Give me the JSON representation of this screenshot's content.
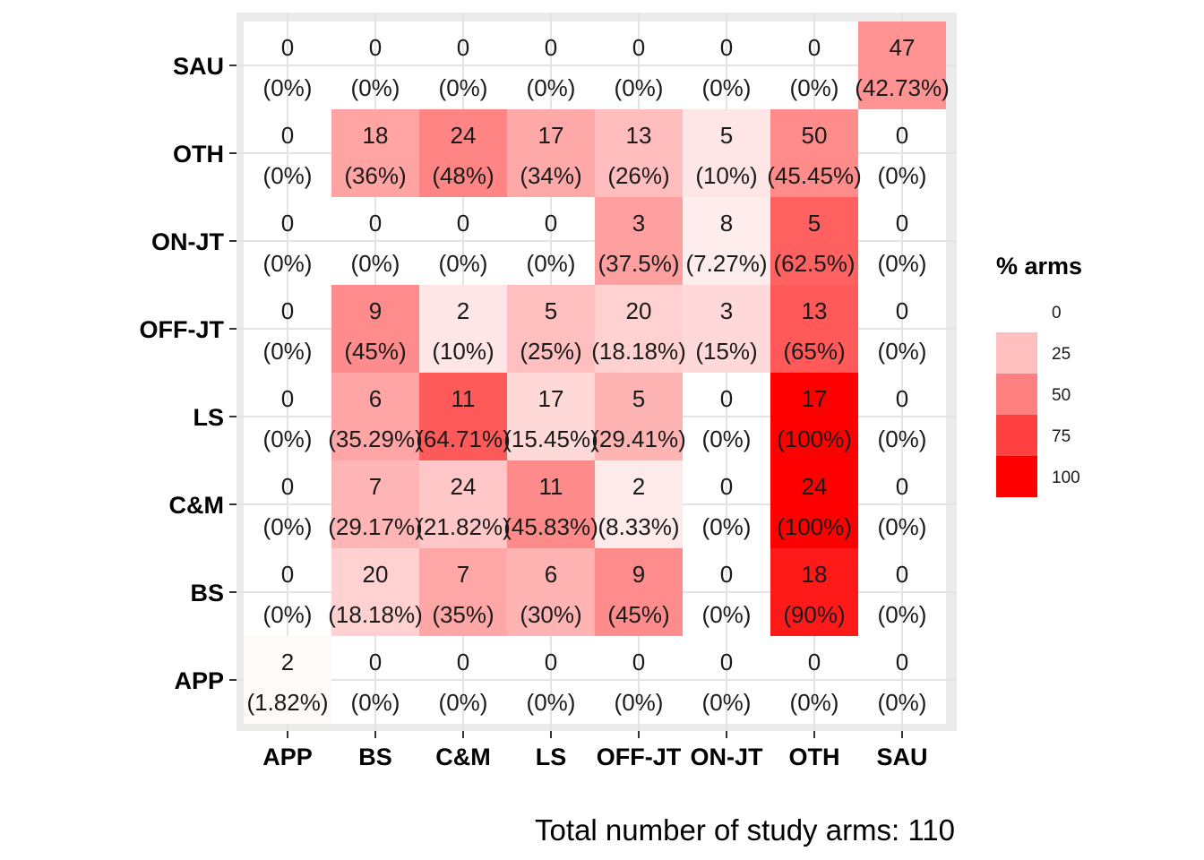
{
  "chart_data": {
    "type": "heatmap",
    "x_categories": [
      "APP",
      "BS",
      "C&M",
      "LS",
      "OFF-JT",
      "ON-JT",
      "OTH",
      "SAU"
    ],
    "y_categories": [
      "SAU",
      "OTH",
      "ON-JT",
      "OFF-JT",
      "LS",
      "C&M",
      "BS",
      "APP"
    ],
    "cells": [
      [
        {
          "count": "0",
          "pct": "(0%)",
          "value": 0
        },
        {
          "count": "0",
          "pct": "(0%)",
          "value": 0
        },
        {
          "count": "0",
          "pct": "(0%)",
          "value": 0
        },
        {
          "count": "0",
          "pct": "(0%)",
          "value": 0
        },
        {
          "count": "0",
          "pct": "(0%)",
          "value": 0
        },
        {
          "count": "0",
          "pct": "(0%)",
          "value": 0
        },
        {
          "count": "0",
          "pct": "(0%)",
          "value": 0
        },
        {
          "count": "47",
          "pct": "(42.73%)",
          "value": 42.73
        }
      ],
      [
        {
          "count": "0",
          "pct": "(0%)",
          "value": 0
        },
        {
          "count": "18",
          "pct": "(36%)",
          "value": 36
        },
        {
          "count": "24",
          "pct": "(48%)",
          "value": 48
        },
        {
          "count": "17",
          "pct": "(34%)",
          "value": 34
        },
        {
          "count": "13",
          "pct": "(26%)",
          "value": 26
        },
        {
          "count": "5",
          "pct": "(10%)",
          "value": 10
        },
        {
          "count": "50",
          "pct": "(45.45%)",
          "value": 45.45
        },
        {
          "count": "0",
          "pct": "(0%)",
          "value": 0
        }
      ],
      [
        {
          "count": "0",
          "pct": "(0%)",
          "value": 0
        },
        {
          "count": "0",
          "pct": "(0%)",
          "value": 0
        },
        {
          "count": "0",
          "pct": "(0%)",
          "value": 0
        },
        {
          "count": "0",
          "pct": "(0%)",
          "value": 0
        },
        {
          "count": "3",
          "pct": "(37.5%)",
          "value": 37.5
        },
        {
          "count": "8",
          "pct": "(7.27%)",
          "value": 7.27
        },
        {
          "count": "5",
          "pct": "(62.5%)",
          "value": 62.5
        },
        {
          "count": "0",
          "pct": "(0%)",
          "value": 0
        }
      ],
      [
        {
          "count": "0",
          "pct": "(0%)",
          "value": 0
        },
        {
          "count": "9",
          "pct": "(45%)",
          "value": 45
        },
        {
          "count": "2",
          "pct": "(10%)",
          "value": 10
        },
        {
          "count": "5",
          "pct": "(25%)",
          "value": 25
        },
        {
          "count": "20",
          "pct": "(18.18%)",
          "value": 18.18
        },
        {
          "count": "3",
          "pct": "(15%)",
          "value": 15
        },
        {
          "count": "13",
          "pct": "(65%)",
          "value": 65
        },
        {
          "count": "0",
          "pct": "(0%)",
          "value": 0
        }
      ],
      [
        {
          "count": "0",
          "pct": "(0%)",
          "value": 0
        },
        {
          "count": "6",
          "pct": "(35.29%)",
          "value": 35.29
        },
        {
          "count": "11",
          "pct": "(64.71%)",
          "value": 64.71
        },
        {
          "count": "17",
          "pct": "(15.45%)",
          "value": 15.45
        },
        {
          "count": "5",
          "pct": "(29.41%)",
          "value": 29.41
        },
        {
          "count": "0",
          "pct": "(0%)",
          "value": 0
        },
        {
          "count": "17",
          "pct": "(100%)",
          "value": 100
        },
        {
          "count": "0",
          "pct": "(0%)",
          "value": 0
        }
      ],
      [
        {
          "count": "0",
          "pct": "(0%)",
          "value": 0
        },
        {
          "count": "7",
          "pct": "(29.17%)",
          "value": 29.17
        },
        {
          "count": "24",
          "pct": "(21.82%)",
          "value": 21.82
        },
        {
          "count": "11",
          "pct": "(45.83%)",
          "value": 45.83
        },
        {
          "count": "2",
          "pct": "(8.33%)",
          "value": 8.33
        },
        {
          "count": "0",
          "pct": "(0%)",
          "value": 0
        },
        {
          "count": "24",
          "pct": "(100%)",
          "value": 100
        },
        {
          "count": "0",
          "pct": "(0%)",
          "value": 0
        }
      ],
      [
        {
          "count": "0",
          "pct": "(0%)",
          "value": 0
        },
        {
          "count": "20",
          "pct": "(18.18%)",
          "value": 18.18
        },
        {
          "count": "7",
          "pct": "(35%)",
          "value": 35
        },
        {
          "count": "6",
          "pct": "(30%)",
          "value": 30
        },
        {
          "count": "9",
          "pct": "(45%)",
          "value": 45
        },
        {
          "count": "0",
          "pct": "(0%)",
          "value": 0
        },
        {
          "count": "18",
          "pct": "(90%)",
          "value": 90
        },
        {
          "count": "0",
          "pct": "(0%)",
          "value": 0
        }
      ],
      [
        {
          "count": "2",
          "pct": "(1.82%)",
          "value": 1.82
        },
        {
          "count": "0",
          "pct": "(0%)",
          "value": 0
        },
        {
          "count": "0",
          "pct": "(0%)",
          "value": 0
        },
        {
          "count": "0",
          "pct": "(0%)",
          "value": 0
        },
        {
          "count": "0",
          "pct": "(0%)",
          "value": 0
        },
        {
          "count": "0",
          "pct": "(0%)",
          "value": 0
        },
        {
          "count": "0",
          "pct": "(0%)",
          "value": 0
        },
        {
          "count": "0",
          "pct": "(0%)",
          "value": 0
        }
      ]
    ],
    "color_scale": {
      "low": "#ffffff",
      "high": "#ff0000",
      "min": 0,
      "max": 100
    },
    "legend": {
      "title": "% arms",
      "breaks": [
        "0",
        "25",
        "50",
        "75",
        "100"
      ],
      "placement": "right"
    },
    "caption": "Total number of study arms: 110",
    "title": "",
    "xlabel": "",
    "ylabel": "",
    "grid": true,
    "panel_background": "#ebebeb"
  }
}
